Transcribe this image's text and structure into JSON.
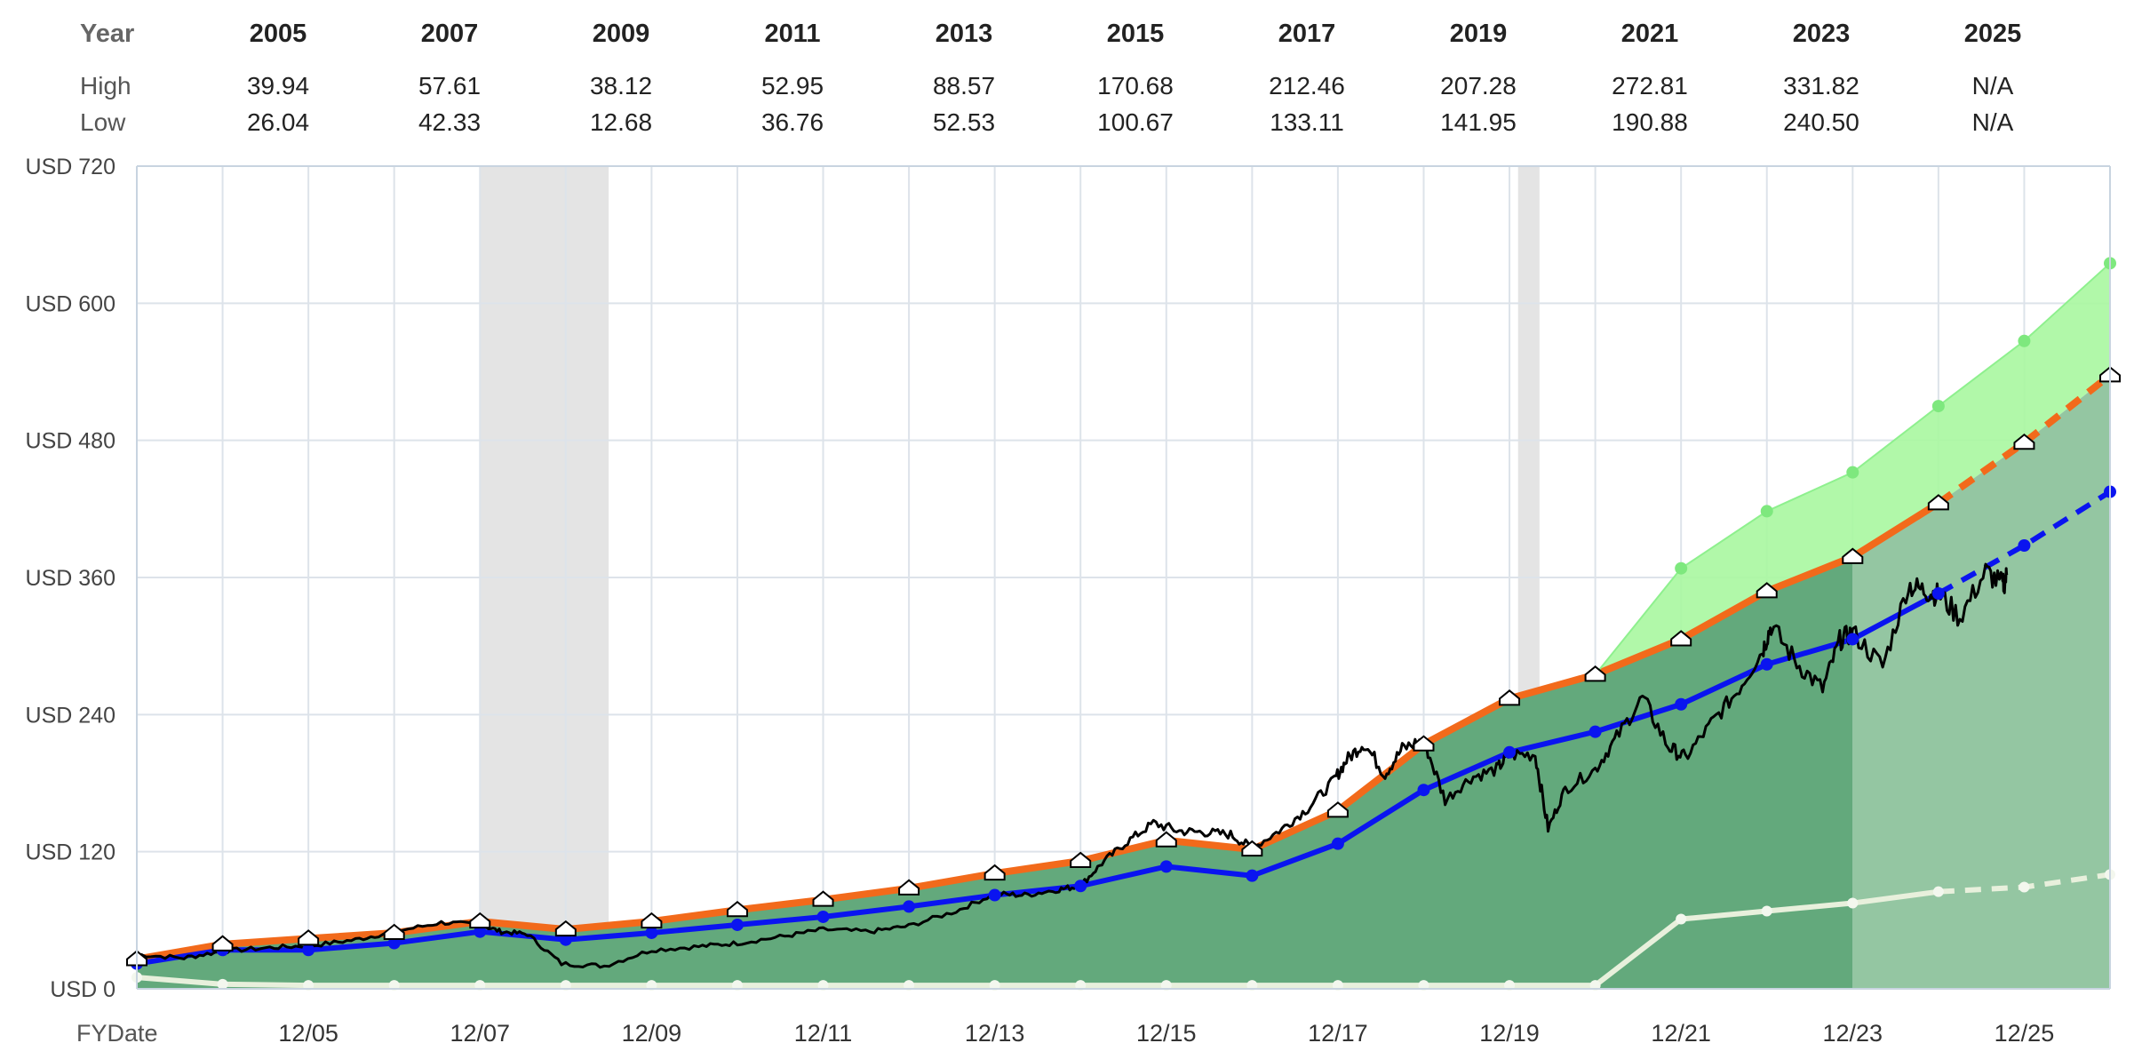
{
  "table": {
    "header_label": "Year",
    "years": [
      "2005",
      "2007",
      "2009",
      "2011",
      "2013",
      "2015",
      "2017",
      "2019",
      "2021",
      "2023",
      "2025"
    ],
    "rows": [
      {
        "label": "High",
        "values": [
          "39.94",
          "57.61",
          "38.12",
          "52.95",
          "88.57",
          "170.68",
          "212.46",
          "207.28",
          "272.81",
          "331.82",
          "N/A"
        ]
      },
      {
        "label": "Low",
        "values": [
          "26.04",
          "42.33",
          "12.68",
          "36.76",
          "52.53",
          "100.67",
          "133.11",
          "141.95",
          "190.88",
          "240.50",
          "N/A"
        ]
      }
    ]
  },
  "chart_data": {
    "type": "area",
    "title": "",
    "xlabel": "FYDate",
    "ylabel": "",
    "x_ticks": [
      "12/05",
      "12/07",
      "12/09",
      "12/11",
      "12/13",
      "12/15",
      "12/17",
      "12/19",
      "12/21",
      "12/23",
      "12/25"
    ],
    "y_ticks": [
      "USD 0",
      "USD 120",
      "USD 240",
      "USD 360",
      "USD 480",
      "USD 600",
      "USD 720"
    ],
    "ylim": [
      0,
      720
    ],
    "xlim": [
      2003.95,
      2026.95
    ],
    "recession_bands": [
      [
        2007.95,
        2009.45
      ],
      [
        2020.05,
        2020.3
      ]
    ],
    "series": [
      {
        "name": "Fair value (orange)",
        "color": "#f26a1b",
        "x": [
          2003.95,
          2004.95,
          2005.95,
          2006.95,
          2007.95,
          2008.95,
          2009.95,
          2010.95,
          2011.95,
          2012.95,
          2013.95,
          2014.95,
          2015.95,
          2016.95,
          2017.95,
          2018.95,
          2019.95,
          2020.95,
          2021.95,
          2022.95,
          2023.95,
          2024.95,
          2025.95,
          2026.95
        ],
        "values": [
          26,
          39,
          44,
          49,
          59,
          52,
          59,
          69,
          78,
          88,
          101,
          112,
          130,
          122,
          156,
          214,
          254,
          275,
          306,
          348,
          378,
          425,
          478,
          537
        ],
        "estimate_from": 2024.95
      },
      {
        "name": "Earnings line (blue)",
        "color": "#0a14f0",
        "x": [
          2003.95,
          2004.95,
          2005.95,
          2006.95,
          2007.95,
          2008.95,
          2009.95,
          2010.95,
          2011.95,
          2012.95,
          2013.95,
          2014.95,
          2015.95,
          2016.95,
          2017.95,
          2018.95,
          2019.95,
          2020.95,
          2021.95,
          2022.95,
          2023.95,
          2024.95,
          2025.95,
          2026.95
        ],
        "values": [
          22,
          34,
          34,
          40,
          50,
          43,
          49,
          56,
          63,
          72,
          82,
          90,
          107,
          99,
          127,
          174,
          207,
          225,
          249,
          284,
          306,
          346,
          388,
          435
        ],
        "estimate_from": 2024.95
      },
      {
        "name": "Upper estimate (green)",
        "color": "#8ef08e",
        "x": [
          2020.95,
          2021.95,
          2022.95,
          2023.95,
          2024.95,
          2025.95,
          2026.95
        ],
        "values": [
          275,
          368,
          418,
          452,
          510,
          567,
          635
        ]
      },
      {
        "name": "Dividends (pale)",
        "color": "#e8f0dc",
        "x": [
          2003.95,
          2004.95,
          2005.95,
          2006.95,
          2007.95,
          2008.95,
          2009.95,
          2010.95,
          2011.95,
          2012.95,
          2013.95,
          2014.95,
          2015.95,
          2016.95,
          2017.95,
          2018.95,
          2019.95,
          2020.95,
          2021.95,
          2022.95,
          2023.95,
          2024.95,
          2025.95,
          2026.95
        ],
        "values": [
          10,
          4,
          3,
          3,
          3,
          3,
          3,
          3,
          3,
          3,
          3,
          3,
          3,
          3,
          3,
          3,
          3,
          3,
          61,
          68,
          75,
          85,
          89,
          100
        ],
        "estimate_from": 2024.95
      },
      {
        "name": "Price (black)",
        "color": "#000000",
        "x": [
          2003.95,
          2004.5,
          2004.95,
          2005.5,
          2006.0,
          2006.5,
          2006.95,
          2007.5,
          2007.95,
          2008.2,
          2008.5,
          2008.9,
          2009.4,
          2009.95,
          2010.5,
          2010.95,
          2011.5,
          2011.95,
          2012.5,
          2012.95,
          2013.5,
          2013.95,
          2014.3,
          2014.7,
          2014.95,
          2015.2,
          2015.5,
          2015.8,
          2016.1,
          2016.4,
          2016.7,
          2016.95,
          2017.3,
          2017.6,
          2017.9,
          2018.05,
          2018.25,
          2018.5,
          2018.7,
          2018.95,
          2019.2,
          2019.5,
          2019.8,
          2019.95,
          2020.25,
          2020.4,
          2020.6,
          2020.95,
          2021.2,
          2021.5,
          2021.8,
          2022.0,
          2022.3,
          2022.6,
          2022.9,
          2023.0,
          2023.3,
          2023.6,
          2023.8,
          2023.95,
          2024.3,
          2024.6,
          2024.8,
          2024.95,
          2025.2,
          2025.5,
          2025.7,
          2025.75
        ],
        "values": [
          30,
          27,
          33,
          36,
          38,
          43,
          50,
          58,
          56,
          50,
          48,
          22,
          20,
          34,
          37,
          40,
          46,
          52,
          50,
          55,
          68,
          83,
          82,
          87,
          90,
          110,
          129,
          145,
          138,
          137,
          135,
          123,
          140,
          158,
          182,
          200,
          215,
          188,
          210,
          218,
          165,
          185,
          192,
          205,
          205,
          140,
          175,
          192,
          220,
          255,
          212,
          202,
          232,
          260,
          296,
          318,
          285,
          262,
          305,
          312,
          282,
          353,
          348,
          345,
          325,
          365,
          353,
          362
        ]
      }
    ]
  }
}
